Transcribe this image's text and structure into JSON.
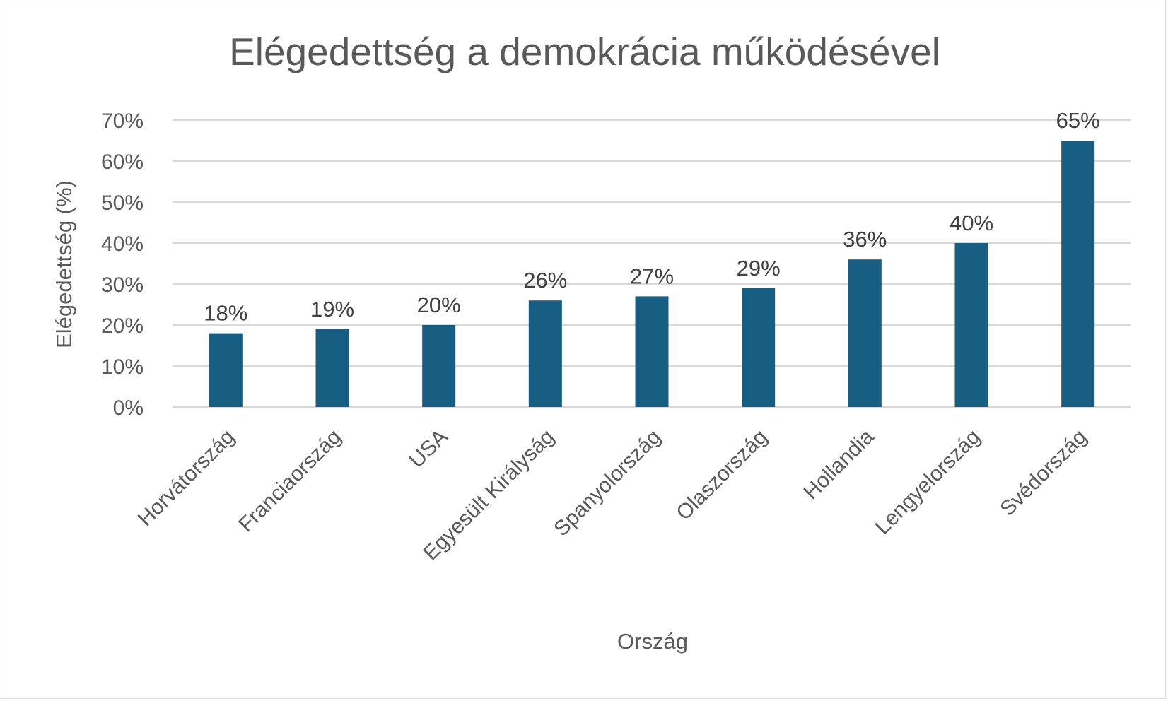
{
  "chart_data": {
    "type": "bar",
    "title": "Elégedettség a demokrácia működésével",
    "xlabel": "Ország",
    "ylabel": "Elégedettség (%)",
    "categories": [
      "Horvátország",
      "Franciaország",
      "USA",
      "Egyesült Királyság",
      "Spanyolország",
      "Olaszország",
      "Hollandia",
      "Lengyelország",
      "Svédország"
    ],
    "values": [
      18,
      19,
      20,
      26,
      27,
      29,
      36,
      40,
      65
    ],
    "data_labels": [
      "18%",
      "19%",
      "20%",
      "26%",
      "27%",
      "29%",
      "36%",
      "40%",
      "65%"
    ],
    "ylim": [
      0,
      70
    ],
    "yticks": [
      0,
      10,
      20,
      30,
      40,
      50,
      60,
      70
    ],
    "ytick_labels": [
      "0%",
      "10%",
      "20%",
      "30%",
      "40%",
      "50%",
      "60%",
      "70%"
    ],
    "grid": true,
    "legend": "none",
    "bar_color": "#175E82",
    "grid_color": "#D9D9D9"
  }
}
